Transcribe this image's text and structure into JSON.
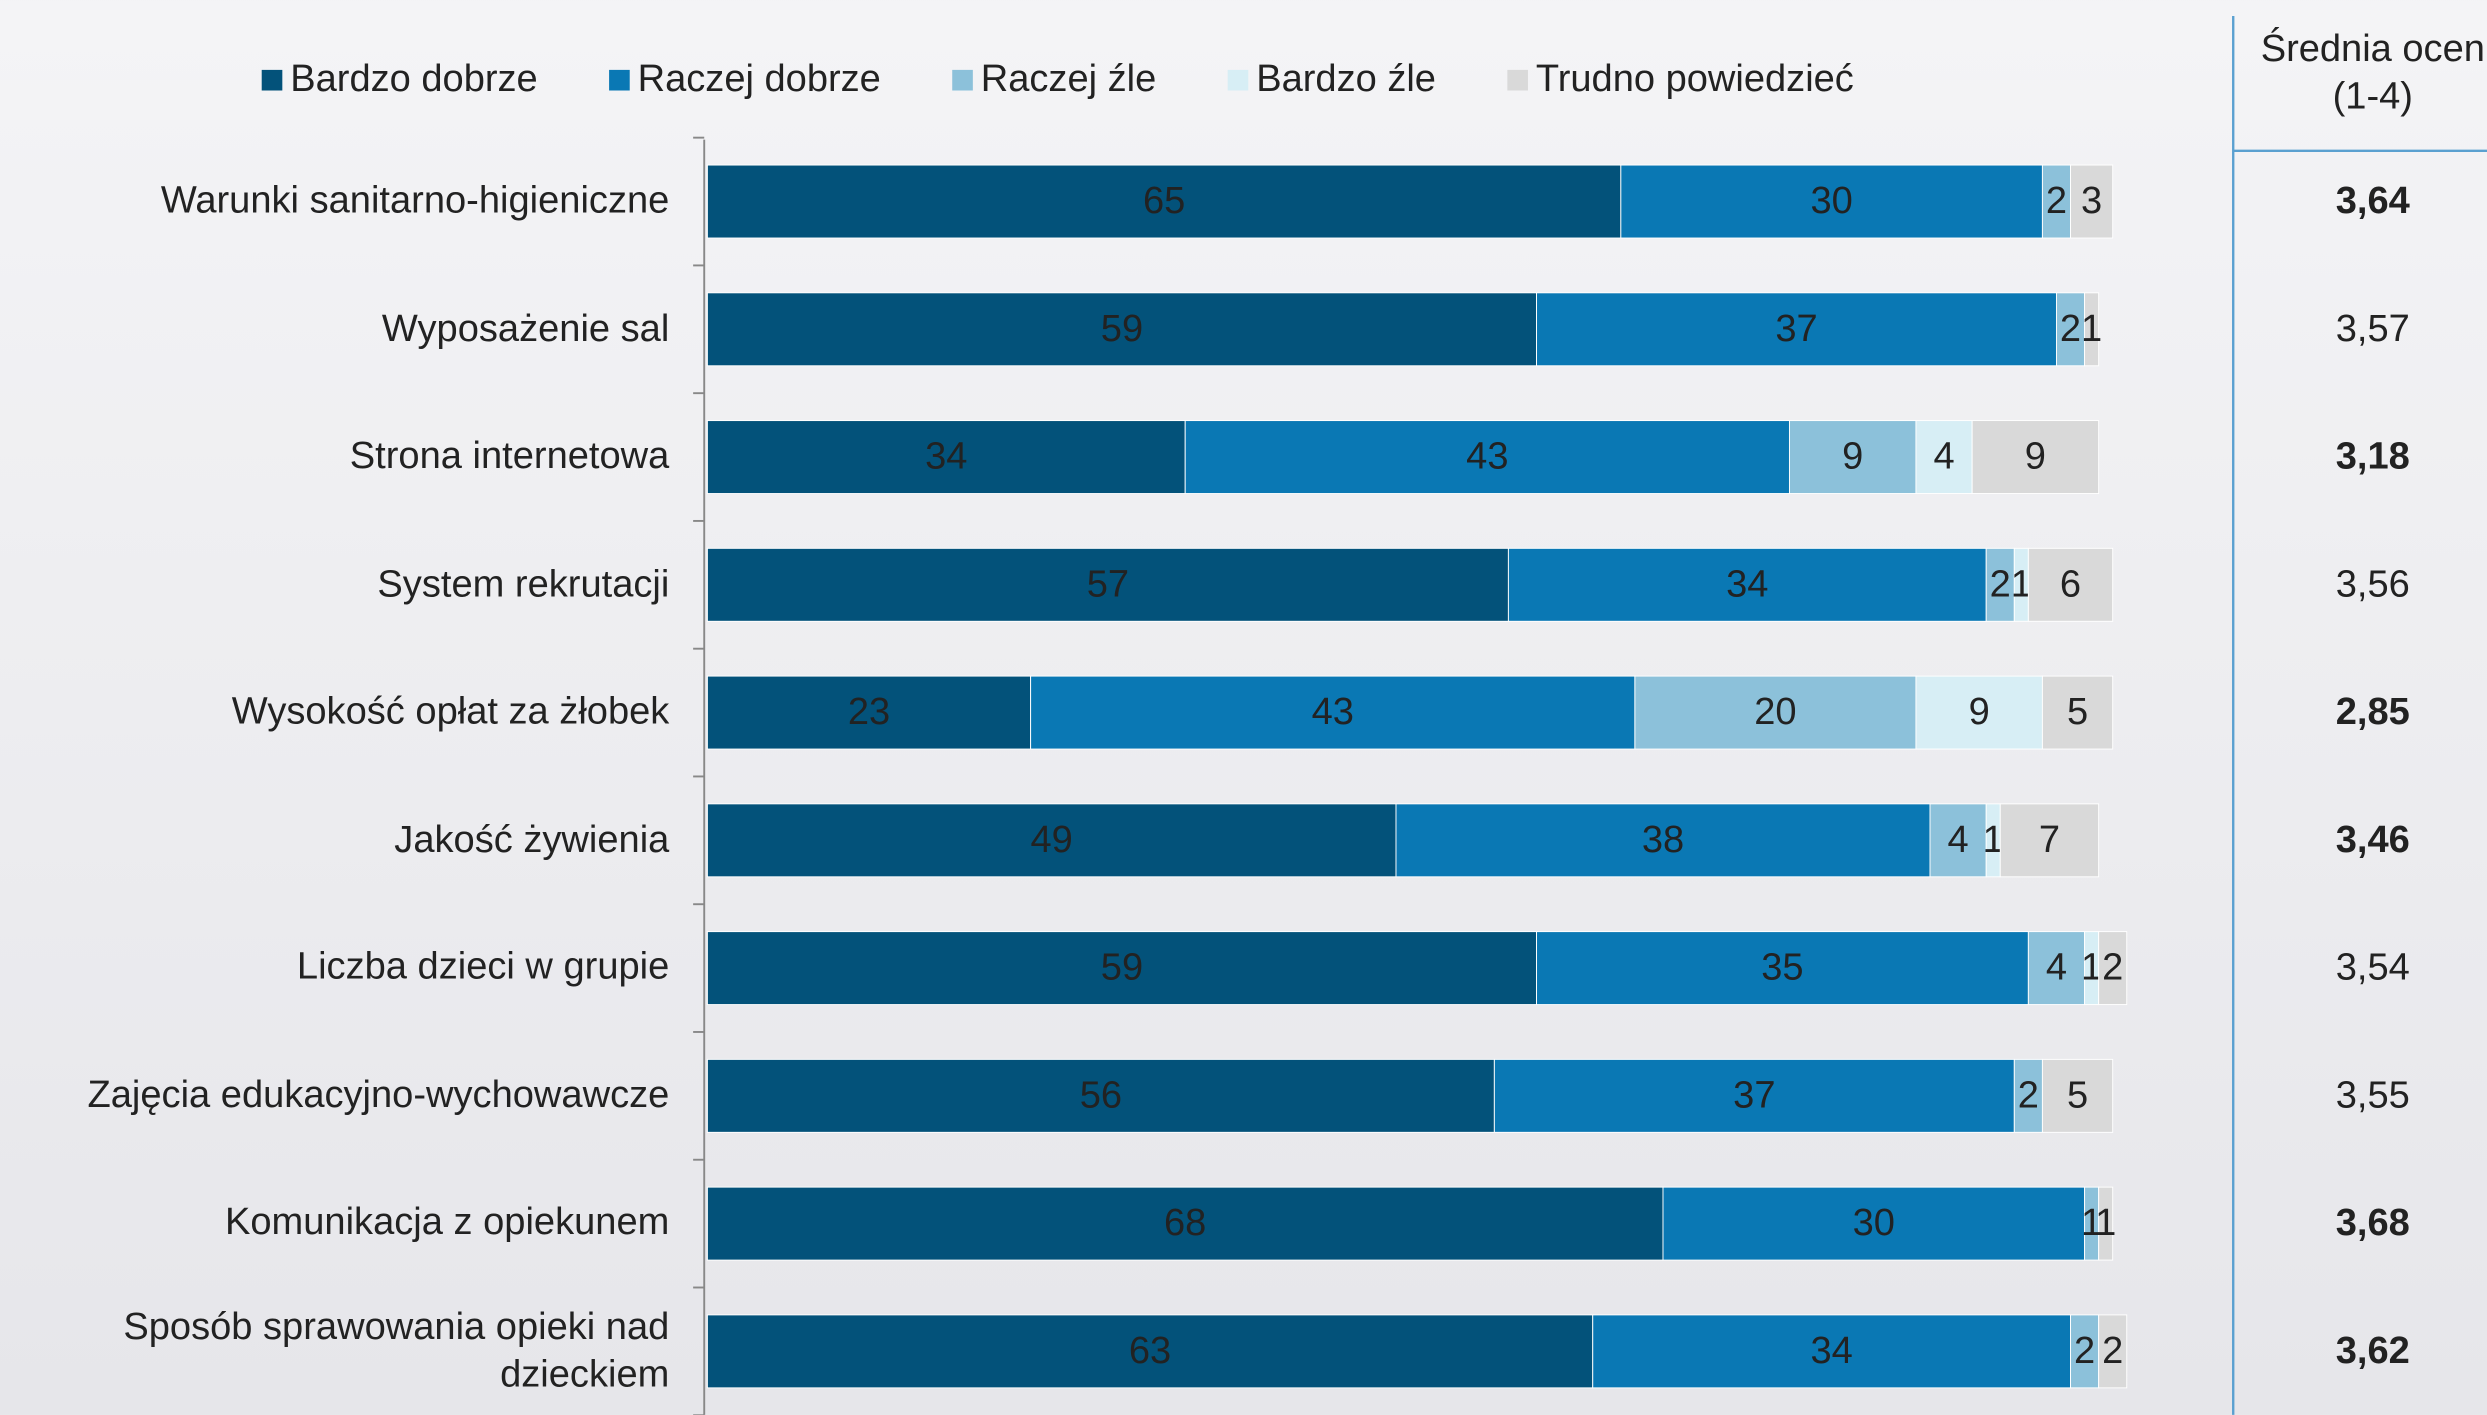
{
  "chart_data": {
    "type": "stacked-bar-horizontal",
    "categories": [
      "Warunki sanitarno-higieniczne",
      "Wyposażenie sal",
      "Strona internetowa",
      "System rekrutacji",
      "Wysokość opłat za żłobek",
      "Jakość żywienia",
      "Liczba dzieci w grupie",
      "Zajęcia edukacyjno-wychowawcze",
      "Komunikacja z opiekunem",
      "Sposób sprawowania opieki nad dzieckiem"
    ],
    "series": [
      {
        "name": "Bardzo dobrze",
        "color": "#03527a",
        "label_color": "#ffffff",
        "values": [
          65,
          59,
          34,
          57,
          23,
          49,
          59,
          56,
          68,
          63
        ]
      },
      {
        "name": "Raczej dobrze",
        "color": "#0a78b4",
        "label_color": "#ffffff",
        "values": [
          30,
          37,
          43,
          34,
          43,
          38,
          35,
          37,
          30,
          34
        ]
      },
      {
        "name": "Raczej źle",
        "color": "#8cc1da",
        "label_color": "#333333",
        "values": [
          2,
          2,
          9,
          2,
          20,
          4,
          4,
          2,
          1,
          2
        ]
      },
      {
        "name": "Bardzo źle",
        "color": "#d7eef5",
        "label_color": "#333333",
        "values": [
          0,
          0,
          4,
          1,
          9,
          1,
          1,
          0,
          0,
          0
        ]
      },
      {
        "name": "Trudno powiedzieć",
        "color": "#d9d9d9",
        "label_color": "#333333",
        "values": [
          3,
          1,
          9,
          6,
          5,
          7,
          2,
          5,
          1,
          2
        ]
      }
    ],
    "xlim": [
      0,
      100
    ],
    "mean_column": {
      "title_lines": [
        "Średnia ocen",
        "(1-4)"
      ],
      "values": [
        "3,64",
        "3,57",
        "3,18",
        "3,56",
        "2,85",
        "3,46",
        "3,54",
        "3,55",
        "3,68",
        "3,62"
      ],
      "colors": [
        "#1a9e48",
        "#333333",
        "#e01b1b",
        "#333333",
        "#e01b1b",
        "#e01b1b",
        "#333333",
        "#333333",
        "#1a9e48",
        "#1a9e48"
      ]
    }
  }
}
